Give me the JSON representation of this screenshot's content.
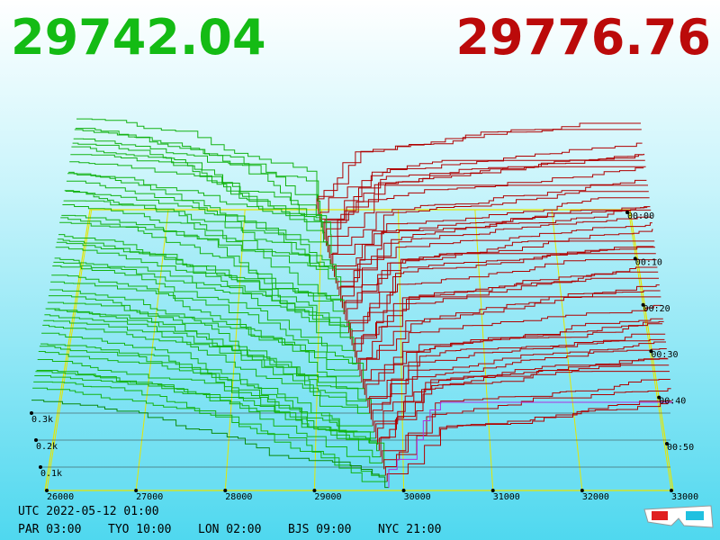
{
  "header": {
    "bid": "29742.04",
    "ask": "29776.76"
  },
  "axes": {
    "price_ticks": [
      "26000",
      "27000",
      "28000",
      "29000",
      "30000",
      "31000",
      "32000",
      "33000"
    ],
    "time_ticks": [
      "00:00",
      "00:10",
      "00:20",
      "00:30",
      "00:40",
      "00:50"
    ],
    "depth_ticks": [
      "0.3k",
      "0.2k",
      "0.1k"
    ]
  },
  "footer": {
    "utc": "UTC 2022-05-12 01:00",
    "clocks": [
      "PAR 03:00",
      "TYO 10:00",
      "LON 02:00",
      "BJS 09:00",
      "NYC 21:00"
    ]
  }
}
